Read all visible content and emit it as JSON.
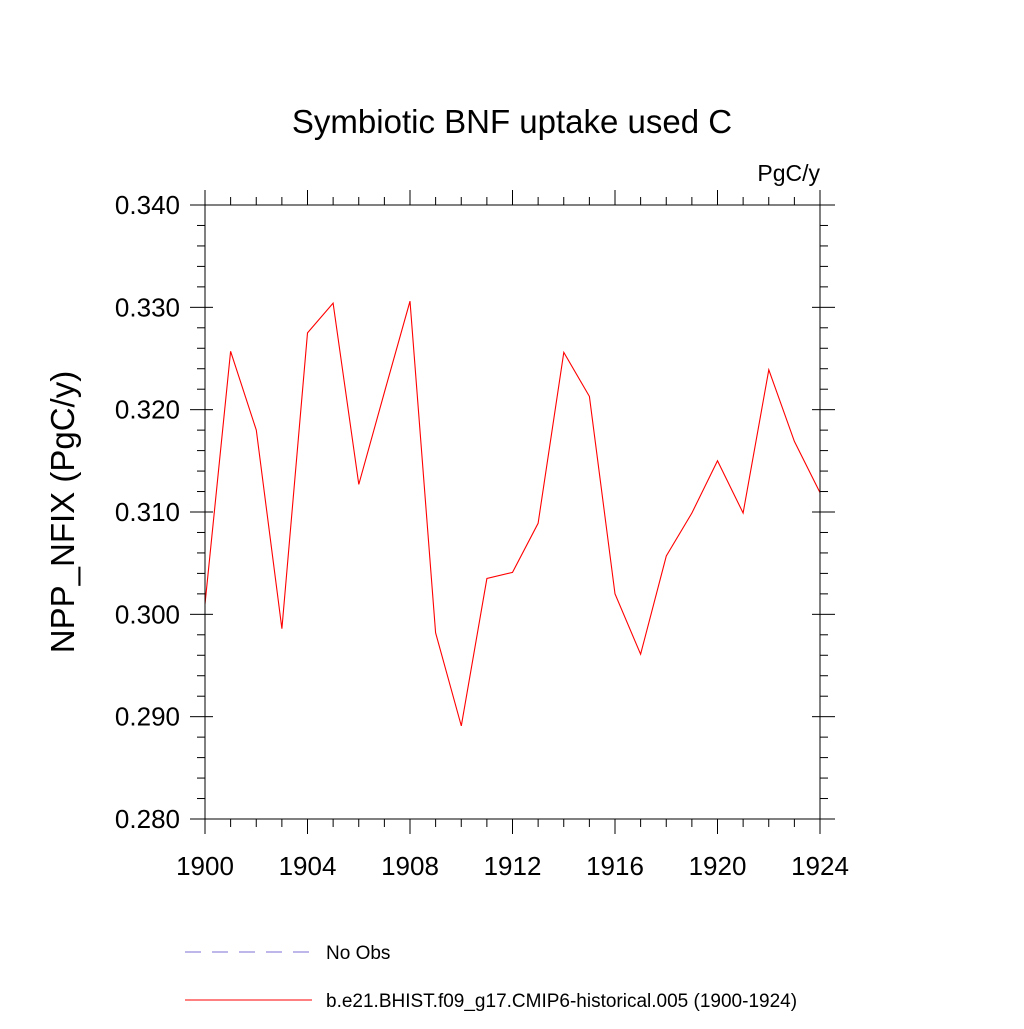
{
  "chart_data": {
    "type": "line",
    "title": "Symbiotic BNF uptake used C",
    "units_label": "PgC/y",
    "ylabel": "NPP_NFIX  (PgC/y)",
    "xlabel": "",
    "xlim": [
      1900,
      1924
    ],
    "ylim": [
      0.28,
      0.34
    ],
    "x_ticks": [
      1900,
      1904,
      1908,
      1912,
      1916,
      1920,
      1924
    ],
    "x_tick_labels": [
      "1900",
      "1904",
      "1908",
      "1912",
      "1916",
      "1920",
      "1924"
    ],
    "y_ticks": [
      0.28,
      0.29,
      0.3,
      0.31,
      0.32,
      0.33,
      0.34
    ],
    "y_tick_labels": [
      "0.280",
      "0.290",
      "0.300",
      "0.310",
      "0.320",
      "0.330",
      "0.340"
    ],
    "grid": false,
    "legend_position": "bottom",
    "series": [
      {
        "name": "b.e21.BHIST.f09_g17.CMIP6-historical.005 (1900-1924)",
        "color": "#ff0000",
        "style": "solid",
        "x": [
          1900,
          1901,
          1902,
          1903,
          1904,
          1905,
          1906,
          1907,
          1908,
          1909,
          1910,
          1911,
          1912,
          1913,
          1914,
          1915,
          1916,
          1917,
          1918,
          1919,
          1920,
          1921,
          1922,
          1923,
          1924
        ],
        "y": [
          0.301,
          0.3257,
          0.318,
          0.2986,
          0.3275,
          0.3304,
          0.3127,
          0.3217,
          0.3306,
          0.2982,
          0.2891,
          0.3035,
          0.3041,
          0.3089,
          0.3256,
          0.3213,
          0.302,
          0.2961,
          0.3057,
          0.3099,
          0.315,
          0.3099,
          0.3239,
          0.3169,
          0.3119
        ]
      }
    ],
    "legend": [
      {
        "label": "No Obs",
        "color": "#7b6fd6",
        "style": "dashed"
      },
      {
        "label": "b.e21.BHIST.f09_g17.CMIP6-historical.005 (1900-1924)",
        "color": "#ff0000",
        "style": "solid"
      }
    ]
  }
}
